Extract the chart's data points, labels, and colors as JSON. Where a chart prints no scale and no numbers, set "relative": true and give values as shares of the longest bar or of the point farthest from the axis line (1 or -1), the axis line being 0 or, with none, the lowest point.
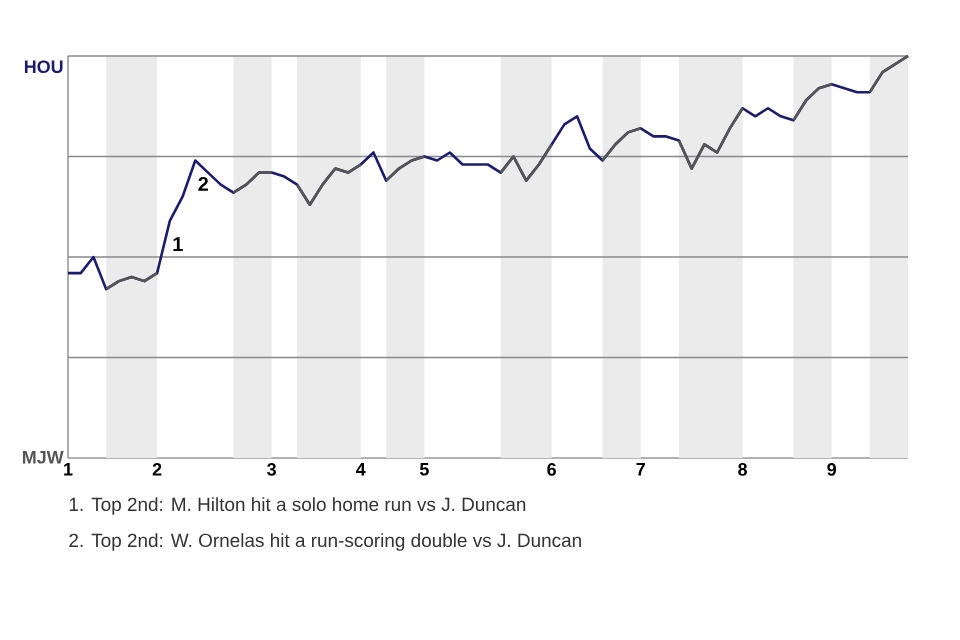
{
  "chart_data": {
    "type": "line",
    "relative": true,
    "categories": [
      "1",
      null,
      null,
      null,
      null,
      null,
      null,
      "2",
      null,
      null,
      null,
      null,
      null,
      null,
      null,
      null,
      "3",
      null,
      null,
      null,
      null,
      null,
      null,
      "4",
      null,
      null,
      null,
      null,
      "5",
      null,
      null,
      null,
      null,
      null,
      null,
      null,
      null,
      null,
      "6",
      null,
      null,
      null,
      null,
      null,
      null,
      "7",
      null,
      null,
      null,
      null,
      null,
      null,
      null,
      "8",
      null,
      null,
      null,
      null,
      null,
      null,
      "9",
      null,
      null,
      null,
      null,
      null,
      null
    ],
    "marker": "none",
    "line_style": "solid",
    "ref_lines": [
      {
        "axis": "y",
        "value": 0.25,
        "color": "#888888"
      },
      {
        "axis": "y",
        "value": 0.5,
        "color": "#888888"
      },
      {
        "axis": "y",
        "value": 0.75,
        "color": "#888888"
      },
      {
        "axis": "y",
        "value": 1,
        "color": "#888888"
      }
    ],
    "series": [
      {
        "name": "HOU",
        "color": "#1c1c6e",
        "values": [
          0.46,
          0.46,
          0.5,
          0.42,
          0.44,
          0.45,
          0.44,
          0.46,
          0.59,
          0.65,
          0.74,
          0.71,
          0.68,
          0.66,
          0.68,
          0.71,
          0.71,
          0.7,
          0.68,
          0.63,
          0.68,
          0.72,
          0.71,
          0.73,
          0.76,
          0.69,
          0.72,
          0.74,
          0.75,
          0.74,
          0.76,
          0.73,
          0.73,
          0.73,
          0.71,
          0.75,
          0.69,
          0.73,
          0.78,
          0.83,
          0.85,
          0.77,
          0.74,
          0.78,
          0.81,
          0.82,
          0.8,
          0.8,
          0.79,
          0.72,
          0.78,
          0.76,
          0.82,
          0.87,
          0.85,
          0.87,
          0.85,
          0.84,
          0.89,
          0.92,
          0.93,
          0.92,
          0.91,
          0.91,
          0.96,
          0.98,
          1
        ]
      },
      {
        "name": "MJW",
        "color": "#555555",
        "values": [
          null,
          null,
          null,
          0.42,
          0.44,
          0.45,
          0.44,
          0.46,
          null,
          null,
          null,
          null,
          null,
          0.66,
          0.68,
          0.71,
          0.71,
          null,
          0.68,
          0.63,
          0.68,
          0.72,
          0.71,
          0.73,
          null,
          0.69,
          0.72,
          0.74,
          0.75,
          null,
          null,
          null,
          null,
          null,
          0.71,
          0.75,
          0.69,
          0.73,
          0.78,
          null,
          null,
          null,
          0.74,
          0.78,
          0.81,
          0.82,
          null,
          null,
          0.79,
          0.72,
          0.78,
          0.76,
          0.82,
          0.87,
          null,
          null,
          null,
          0.84,
          0.89,
          0.92,
          0.93,
          null,
          null,
          0.91,
          0.96,
          0.98,
          1
        ]
      }
    ],
    "annotations": [
      {
        "text": "1",
        "y": 0.59
      },
      {
        "text": "2",
        "y": 0.74
      },
      "1. Top 2nd: M. Hilton hit a solo home run vs J. Duncan",
      "2. Top 2nd: W. Ornelas hit a run-scoring double vs J. Duncan"
    ]
  }
}
